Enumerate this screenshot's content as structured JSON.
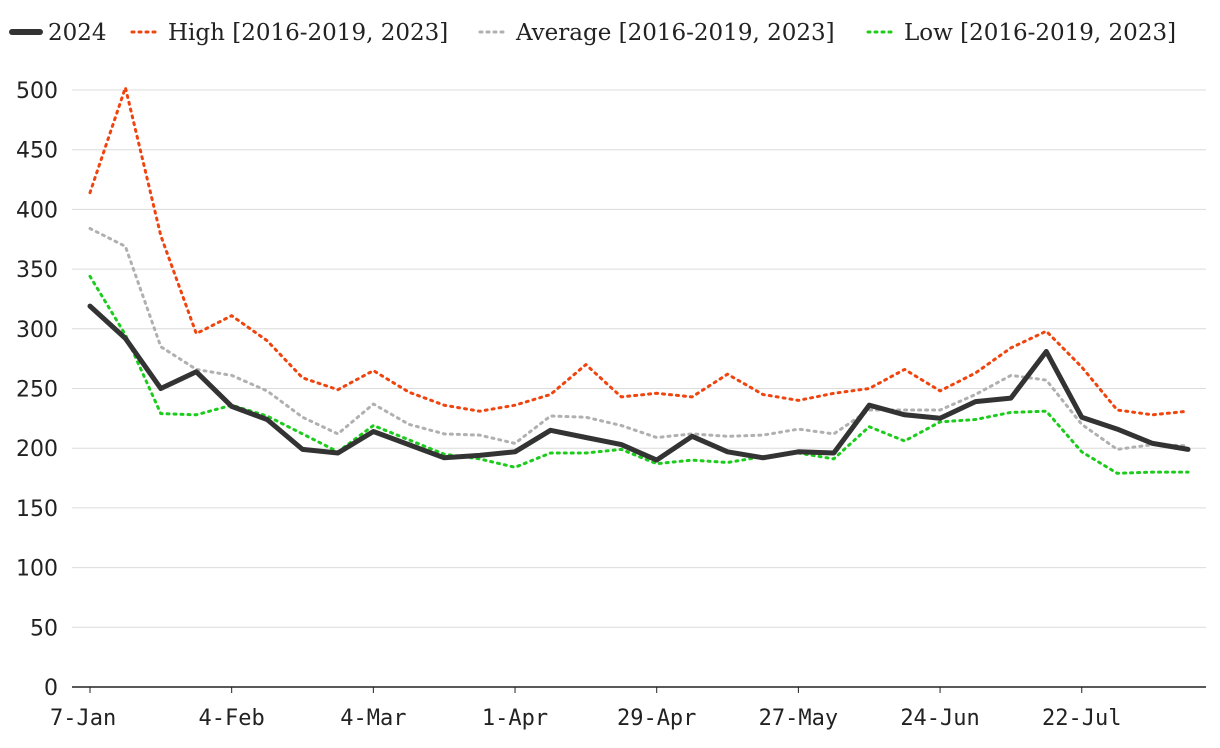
{
  "chart_data": {
    "type": "line",
    "title": "",
    "xlabel": "",
    "ylabel": "",
    "ylim": [
      0,
      500
    ],
    "yticks": [
      0,
      50,
      100,
      150,
      200,
      250,
      300,
      350,
      400,
      450,
      500
    ],
    "grid": "horizontal",
    "legend_position": "top",
    "x_tick_labels": [
      "7-Jan",
      "4-Feb",
      "4-Mar",
      "1-Apr",
      "29-Apr",
      "27-May",
      "24-Jun",
      "22-Jul"
    ],
    "x_tick_indices": [
      0,
      4,
      8,
      12,
      16,
      20,
      24,
      28
    ],
    "x": [
      "7-Jan",
      "14-Jan",
      "21-Jan",
      "28-Jan",
      "4-Feb",
      "11-Feb",
      "18-Feb",
      "25-Feb",
      "4-Mar",
      "11-Mar",
      "18-Mar",
      "25-Mar",
      "1-Apr",
      "8-Apr",
      "15-Apr",
      "22-Apr",
      "29-Apr",
      "6-May",
      "13-May",
      "20-May",
      "27-May",
      "3-Jun",
      "10-Jun",
      "17-Jun",
      "24-Jun",
      "1-Jul",
      "8-Jul",
      "15-Jul",
      "22-Jul",
      "29-Jul",
      "5-Aug",
      "12-Aug"
    ],
    "series": [
      {
        "name": "2024",
        "color": "#333333",
        "style": "solid",
        "values": [
          319,
          292,
          250,
          264,
          235,
          224,
          199,
          196,
          214,
          203,
          192,
          194,
          197,
          215,
          209,
          203,
          190,
          210,
          197,
          192,
          197,
          196,
          236,
          228,
          225,
          239,
          242,
          281,
          226,
          216,
          204,
          199
        ]
      },
      {
        "name": "High [2016-2019, 2023]",
        "color": "#f0440f",
        "style": "dotted",
        "values": [
          414,
          502,
          378,
          296,
          311,
          290,
          259,
          249,
          265,
          247,
          236,
          231,
          236,
          245,
          270,
          243,
          246,
          243,
          262,
          245,
          240,
          246,
          250,
          266,
          248,
          263,
          284,
          298,
          268,
          232,
          228,
          231
        ]
      },
      {
        "name": "Average [2016-2019, 2023]",
        "color": "#b0b0b0",
        "style": "dotted",
        "values": [
          384,
          369,
          285,
          266,
          261,
          248,
          226,
          212,
          237,
          220,
          212,
          211,
          204,
          227,
          226,
          219,
          209,
          212,
          210,
          211,
          216,
          212,
          232,
          232,
          232,
          245,
          261,
          257,
          220,
          199,
          203,
          202
        ]
      },
      {
        "name": "Low [2016-2019, 2023]",
        "color": "#1ccc1c",
        "style": "dotted",
        "values": [
          344,
          295,
          229,
          228,
          236,
          227,
          212,
          197,
          219,
          207,
          195,
          191,
          184,
          196,
          196,
          199,
          187,
          190,
          188,
          193,
          196,
          191,
          218,
          206,
          222,
          224,
          230,
          231,
          197,
          179,
          180,
          180
        ]
      }
    ]
  }
}
